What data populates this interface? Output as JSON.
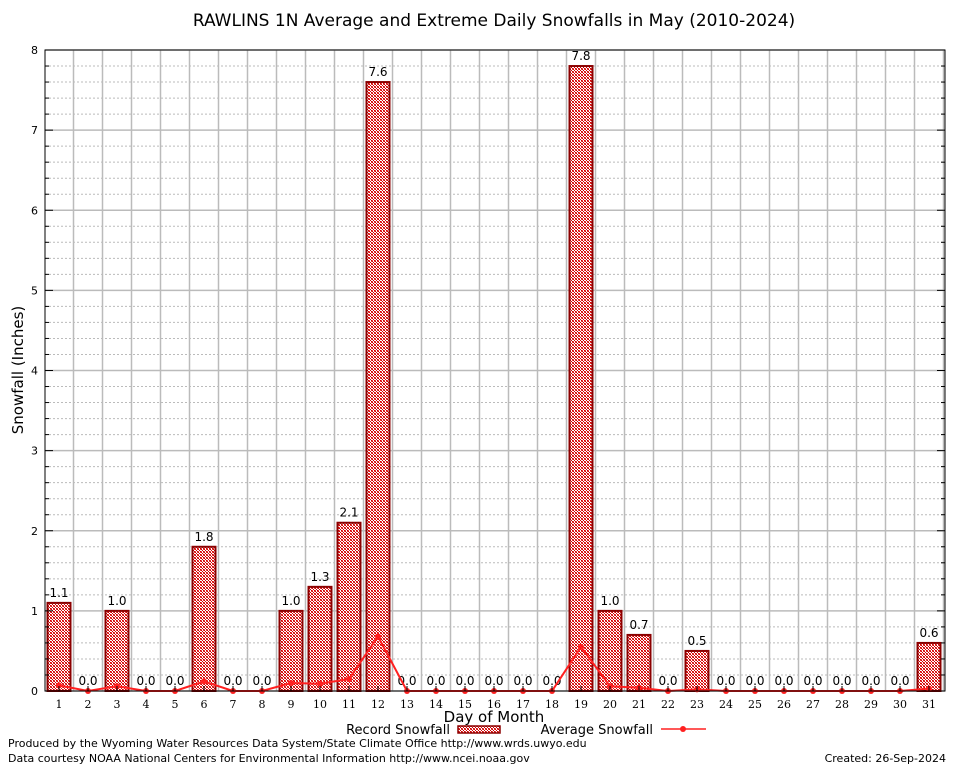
{
  "chart_data": {
    "type": "bar",
    "title": "RAWLINS 1N Average and Extreme Daily Snowfalls in May (2010-2024)",
    "xlabel": "Day of Month",
    "ylabel": "Snowfall (Inches)",
    "ylim": [
      0,
      8
    ],
    "yticks": [
      "0",
      "1",
      "2",
      "3",
      "4",
      "5",
      "6",
      "7",
      "8"
    ],
    "categories": [
      "1",
      "2",
      "3",
      "4",
      "5",
      "6",
      "7",
      "8",
      "9",
      "10",
      "11",
      "12",
      "13",
      "14",
      "15",
      "16",
      "17",
      "18",
      "19",
      "20",
      "21",
      "22",
      "23",
      "24",
      "25",
      "26",
      "27",
      "28",
      "29",
      "30",
      "31"
    ],
    "series": [
      {
        "name": "Record Snowfall",
        "type": "bar",
        "values": [
          1.1,
          0.0,
          1.0,
          0.0,
          0.0,
          1.8,
          0.0,
          0.0,
          1.0,
          1.3,
          2.1,
          7.6,
          0.0,
          0.0,
          0.0,
          0.0,
          0.0,
          0.0,
          7.8,
          1.0,
          0.7,
          0.0,
          0.5,
          0.0,
          0.0,
          0.0,
          0.0,
          0.0,
          0.0,
          0.0,
          0.6
        ],
        "labels": [
          "1.1",
          "0.0",
          "1.0",
          "0.0",
          "0.0",
          "1.8",
          "0.0",
          "0.0",
          "1.0",
          "1.3",
          "2.1",
          "7.6",
          "0.0",
          "0.0",
          "0.0",
          "0.0",
          "0.0",
          "0.0",
          "7.8",
          "1.0",
          "0.7",
          "0.0",
          "0.5",
          "0.0",
          "0.0",
          "0.0",
          "0.0",
          "0.0",
          "0.0",
          "0.0",
          "0.6"
        ]
      },
      {
        "name": "Average Snowfall",
        "type": "line",
        "values": [
          0.07,
          0.0,
          0.06,
          0.0,
          0.0,
          0.12,
          0.0,
          0.0,
          0.1,
          0.09,
          0.15,
          0.68,
          0.0,
          0.0,
          0.0,
          0.0,
          0.0,
          0.0,
          0.55,
          0.06,
          0.04,
          0.0,
          0.02,
          0.0,
          0.0,
          0.0,
          0.0,
          0.0,
          0.0,
          0.0,
          0.03
        ]
      }
    ],
    "grid": true,
    "legend_placement": "bottom-center",
    "colors": {
      "bar_fill": "#cc0000",
      "bar_edge": "#8b0000",
      "line": "#ff2020"
    }
  },
  "footer": {
    "produced": "Produced by the Wyoming Water Resources Data System/State Climate Office http://www.wrds.uwyo.edu",
    "courtesy": "Data courtesy NOAA National Centers for Environmental Information http://www.ncei.noaa.gov",
    "created": "Created: 26-Sep-2024"
  }
}
